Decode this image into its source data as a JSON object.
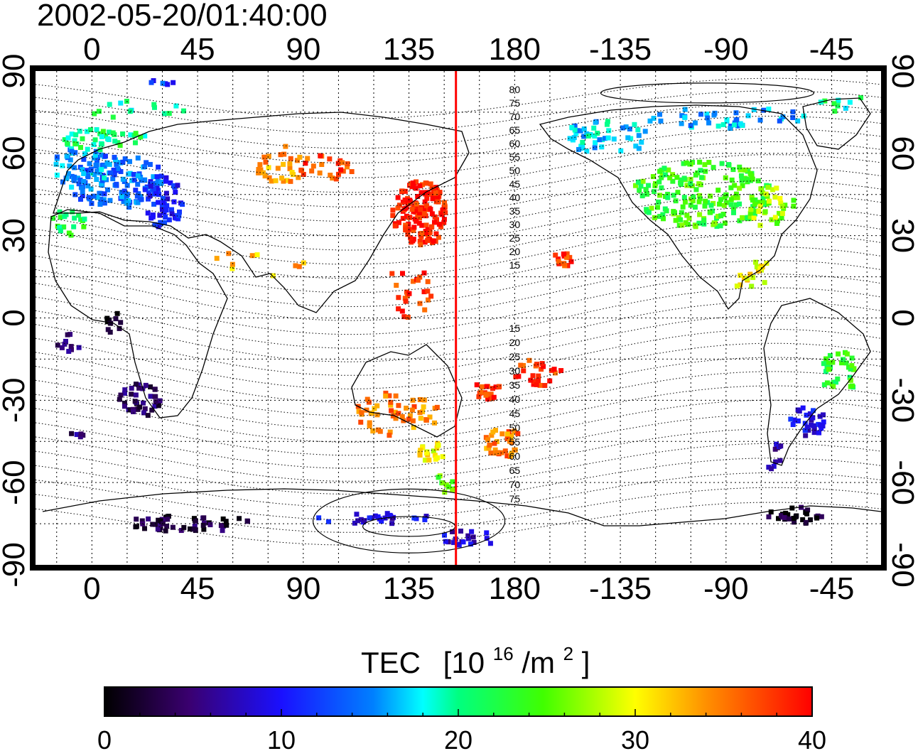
{
  "timestamp": "2002-05-20/01:40:00",
  "map": {
    "lon_ticks": [
      "0",
      "45",
      "90",
      "135",
      "180",
      "-135",
      "-90",
      "-45"
    ],
    "lat_ticks": [
      "90",
      "60",
      "30",
      "0",
      "-30",
      "-60",
      "-90"
    ],
    "lon_values": [
      0,
      45,
      90,
      135,
      180,
      225,
      270,
      315
    ],
    "lat_values": [
      90,
      60,
      30,
      0,
      -30,
      -60,
      -90
    ],
    "lon_range": [
      -24,
      336
    ],
    "lat_range": [
      -90,
      90
    ],
    "grid": "dotted, every 15 degrees",
    "contour_labels_north": [
      "80",
      "75",
      "70",
      "65",
      "60",
      "55",
      "50",
      "45",
      "40",
      "35",
      "30",
      "25",
      "20",
      "15"
    ],
    "contour_labels_south": [
      "15",
      "20",
      "25",
      "30",
      "35",
      "40",
      "45",
      "50",
      "55",
      "60",
      "65",
      "70",
      "75"
    ],
    "terminator_longitude": 155,
    "terminator_color": "#ff0000"
  },
  "colorbar": {
    "title": "TEC",
    "unit_base": "[10",
    "unit_exp": "16",
    "unit_mid": "/m",
    "unit_exp2": "2",
    "unit_end": "]",
    "min": 0,
    "max": 40,
    "tick_labels": [
      "0",
      "10",
      "20",
      "30",
      "40"
    ],
    "tick_values": [
      0,
      10,
      20,
      30,
      40
    ]
  },
  "tec_clusters": [
    {
      "lon": 10,
      "lat": 50,
      "rx": 22,
      "ry": 10,
      "n": 140,
      "tec": 14
    },
    {
      "lon": -5,
      "lat": 55,
      "rx": 12,
      "ry": 8,
      "n": 40,
      "tec": 16
    },
    {
      "lon": 30,
      "lat": 42,
      "rx": 9,
      "ry": 10,
      "n": 55,
      "tec": 10
    },
    {
      "lon": 5,
      "lat": 65,
      "rx": 20,
      "ry": 4,
      "n": 40,
      "tec": 21
    },
    {
      "lon": -10,
      "lat": 35,
      "rx": 8,
      "ry": 5,
      "n": 20,
      "tec": 22
    },
    {
      "lon": 15,
      "lat": 76,
      "rx": 25,
      "ry": 3,
      "n": 14,
      "tec": 20
    },
    {
      "lon": 30,
      "lat": 86,
      "rx": 6,
      "ry": 1,
      "n": 6,
      "tec": 12
    },
    {
      "lon": 80,
      "lat": 55,
      "rx": 10,
      "ry": 8,
      "n": 30,
      "tec": 34
    },
    {
      "lon": 100,
      "lat": 55,
      "rx": 12,
      "ry": 5,
      "n": 25,
      "tec": 37
    },
    {
      "lon": 140,
      "lat": 38,
      "rx": 12,
      "ry": 12,
      "n": 150,
      "tec": 39
    },
    {
      "lon": 135,
      "lat": 10,
      "rx": 10,
      "ry": 10,
      "n": 25,
      "tec": 38
    },
    {
      "lon": 130,
      "lat": -35,
      "rx": 18,
      "ry": 8,
      "n": 55,
      "tec": 35
    },
    {
      "lon": 145,
      "lat": -48,
      "rx": 6,
      "ry": 5,
      "n": 18,
      "tec": 30
    },
    {
      "lon": 150,
      "lat": -60,
      "rx": 5,
      "ry": 4,
      "n": 10,
      "tec": 25
    },
    {
      "lon": 175,
      "lat": -45,
      "rx": 8,
      "ry": 6,
      "n": 35,
      "tec": 35
    },
    {
      "lon": 168,
      "lat": -27,
      "rx": 7,
      "ry": 4,
      "n": 18,
      "tec": 38
    },
    {
      "lon": 190,
      "lat": -20,
      "rx": 10,
      "ry": 5,
      "n": 25,
      "tec": 38
    },
    {
      "lon": 202,
      "lat": 22,
      "rx": 5,
      "ry": 3,
      "n": 15,
      "tec": 38
    },
    {
      "lon": 260,
      "lat": 45,
      "rx": 30,
      "ry": 12,
      "n": 200,
      "tec": 24
    },
    {
      "lon": 220,
      "lat": 66,
      "rx": 20,
      "ry": 6,
      "n": 50,
      "tec": 17
    },
    {
      "lon": 270,
      "lat": 73,
      "rx": 35,
      "ry": 4,
      "n": 45,
      "tec": 16
    },
    {
      "lon": 290,
      "lat": 40,
      "rx": 10,
      "ry": 8,
      "n": 30,
      "tec": 27
    },
    {
      "lon": 282,
      "lat": 15,
      "rx": 10,
      "ry": 6,
      "n": 18,
      "tec": 30
    },
    {
      "lon": 318,
      "lat": -20,
      "rx": 8,
      "ry": 8,
      "n": 35,
      "tec": 23
    },
    {
      "lon": 305,
      "lat": -38,
      "rx": 8,
      "ry": 6,
      "n": 30,
      "tec": 9
    },
    {
      "lon": 290,
      "lat": -50,
      "rx": 4,
      "ry": 6,
      "n": 10,
      "tec": 6
    },
    {
      "lon": 300,
      "lat": -72,
      "rx": 12,
      "ry": 3,
      "n": 30,
      "tec": 2
    },
    {
      "lon": 20,
      "lat": -30,
      "rx": 10,
      "ry": 6,
      "n": 40,
      "tec": 4
    },
    {
      "lon": 10,
      "lat": -2,
      "rx": 4,
      "ry": 4,
      "n": 10,
      "tec": 2
    },
    {
      "lon": -10,
      "lat": -10,
      "rx": 5,
      "ry": 5,
      "n": 10,
      "tec": 4
    },
    {
      "lon": -5,
      "lat": -43,
      "rx": 4,
      "ry": 3,
      "n": 5,
      "tec": 5
    },
    {
      "lon": 40,
      "lat": -75,
      "rx": 30,
      "ry": 3,
      "n": 50,
      "tec": 3
    },
    {
      "lon": 120,
      "lat": -73,
      "rx": 25,
      "ry": 2,
      "n": 25,
      "tec": 9
    },
    {
      "lon": 160,
      "lat": -80,
      "rx": 15,
      "ry": 3,
      "n": 20,
      "tec": 8
    },
    {
      "lon": 70,
      "lat": 20,
      "rx": 25,
      "ry": 5,
      "n": 10,
      "tec": 33
    },
    {
      "lon": 320,
      "lat": 78,
      "rx": 15,
      "ry": 3,
      "n": 10,
      "tec": 20
    }
  ],
  "colors": {
    "background": "#ffffff",
    "frame": "#000000",
    "terminator": "#ff0000"
  }
}
